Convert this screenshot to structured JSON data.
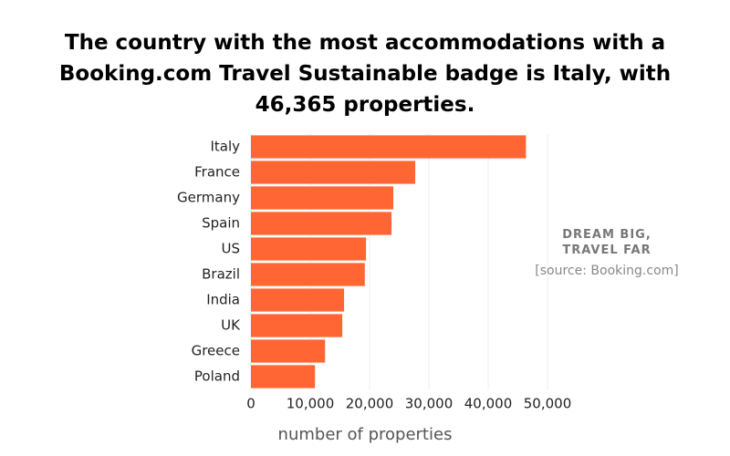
{
  "chart_data": {
    "type": "bar",
    "orientation": "horizontal",
    "title": "The country with the most accommodations with a Booking.com Travel Sustainable badge is Italy, with 46,365 properties.",
    "annotation": "DREAM BIG, TRAVEL FAR",
    "source": "[source: Booking.com]",
    "x_label": "number of properties",
    "categories": [
      "Italy",
      "France",
      "Germany",
      "Spain",
      "US",
      "Brazil",
      "India",
      "UK",
      "Greece",
      "Poland"
    ],
    "values": [
      46365,
      27700,
      24000,
      23700,
      19400,
      19200,
      15700,
      15400,
      12500,
      10800
    ],
    "color": "#ff6633",
    "xlim": [
      0,
      50000
    ],
    "xticks": [
      0,
      {
        "value": 10000,
        "label": "10,000"
      },
      {
        "value": 20000,
        "label": "20,000"
      },
      {
        "value": 30000,
        "label": "30,000"
      },
      {
        "value": 40000,
        "label": "40,000"
      },
      {
        "value": 50000,
        "label": "50,000"
      }
    ],
    "grid": true
  }
}
